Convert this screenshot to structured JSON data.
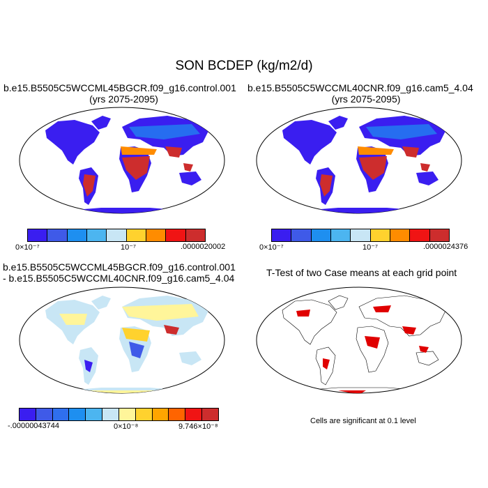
{
  "title": "SON BCDEP (kg/m2/d)",
  "panels": [
    {
      "id": "control",
      "title_line1": "b.e15.B5505C5WCCML45BGCR.f09_g16.control.001",
      "title_line2": "(yrs 2075-2095)",
      "colorbar": {
        "colors": [
          "#3a1ef0",
          "#3f5ae8",
          "#1e8ff0",
          "#4cb5f0",
          "#c8e6f5",
          "#ffd22e",
          "#ff8c00",
          "#f01414",
          "#cd2d2d"
        ],
        "labels": [
          "0×10⁻⁷",
          "10⁻⁷",
          ".0000020002"
        ]
      }
    },
    {
      "id": "cam5",
      "title_line1": "b.e15.B5505C5WCCML40CNR.f09_g16.cam5_4.04",
      "title_line2": "(yrs 2075-2095)",
      "colorbar": {
        "colors": [
          "#3a1ef0",
          "#3f5ae8",
          "#1e8ff0",
          "#4cb5f0",
          "#c8e6f5",
          "#ffd22e",
          "#ff8c00",
          "#f01414",
          "#cd2d2d"
        ],
        "labels": [
          "0×10⁻⁷",
          "10⁻⁷",
          ".0000024376"
        ]
      }
    },
    {
      "id": "difference",
      "title_line1": "b.e15.B5505C5WCCML45BGCR.f09_g16.control.001",
      "title_line2": "- b.e15.B5505C5WCCML40CNR.f09_g16.cam5_4.04",
      "colorbar": {
        "colors": [
          "#3a1ef0",
          "#3f5ae8",
          "#2f6fee",
          "#1e8ff0",
          "#4cb5f0",
          "#c8e6f5",
          "#fff59a",
          "#ffd22e",
          "#ffa500",
          "#ff6400",
          "#f01414",
          "#cd2d2d"
        ],
        "labels": [
          "-.00000043744",
          "0×10⁻⁸",
          "9.746×10⁻⁸"
        ]
      }
    },
    {
      "id": "ttest",
      "title_line1": "T-Test of two Case means at each grid point",
      "note": "Cells are significant at 0.1 level",
      "color": "#e00000"
    }
  ]
}
